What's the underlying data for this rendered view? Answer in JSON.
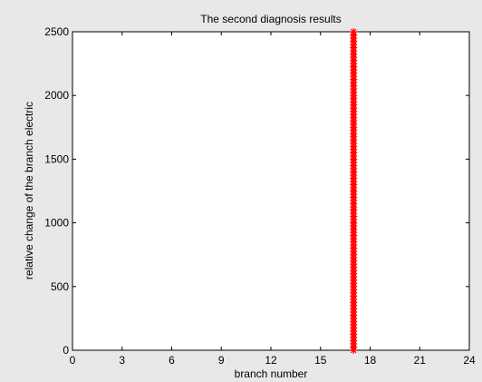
{
  "figure": {
    "background_color": "#e8e8e8",
    "axes_background_color": "#ffffff",
    "marker_color": "#ff0000"
  },
  "chart_data": {
    "type": "scatter",
    "title": "The second diagnosis results",
    "xlabel": "branch number",
    "ylabel": "relative change of the branch electric",
    "xlim": [
      0,
      24
    ],
    "ylim": [
      0,
      2500
    ],
    "xticks": [
      0,
      3,
      6,
      9,
      12,
      15,
      18,
      21,
      24
    ],
    "yticks": [
      0,
      500,
      1000,
      1500,
      2000,
      2500
    ],
    "grid": false,
    "marker": "asterisk",
    "series": [
      {
        "x": [
          17,
          17,
          17,
          17,
          17,
          17,
          17,
          17,
          17,
          17,
          17,
          17,
          17,
          17,
          17,
          17,
          17,
          17,
          17,
          17,
          17,
          17,
          17,
          17,
          17,
          17,
          17,
          17,
          17,
          17,
          17,
          17,
          17,
          17,
          17,
          17,
          17,
          17,
          17,
          17,
          17,
          17,
          17,
          17,
          17,
          17,
          17,
          17,
          17,
          17,
          17,
          17,
          17,
          17,
          17,
          17,
          17,
          17,
          17,
          17,
          17,
          17,
          17,
          17,
          17,
          17,
          17,
          17,
          17,
          17,
          17,
          17,
          17,
          17,
          17,
          17,
          17,
          17,
          17,
          17,
          17,
          17,
          17,
          17,
          17,
          17,
          17,
          17,
          17,
          17,
          17,
          17,
          17,
          17,
          17,
          17,
          17,
          17,
          17,
          17,
          17
        ],
        "y": [
          0,
          25,
          50,
          75,
          100,
          125,
          150,
          175,
          200,
          225,
          250,
          275,
          300,
          325,
          350,
          375,
          400,
          425,
          450,
          475,
          500,
          525,
          550,
          575,
          600,
          625,
          650,
          675,
          700,
          725,
          750,
          775,
          800,
          825,
          850,
          875,
          900,
          925,
          950,
          975,
          1000,
          1025,
          1050,
          1075,
          1100,
          1125,
          1150,
          1175,
          1200,
          1225,
          1250,
          1275,
          1300,
          1325,
          1350,
          1375,
          1400,
          1425,
          1450,
          1475,
          1500,
          1525,
          1550,
          1575,
          1600,
          1625,
          1650,
          1675,
          1700,
          1725,
          1750,
          1775,
          1800,
          1825,
          1850,
          1875,
          1900,
          1925,
          1950,
          1975,
          2000,
          2025,
          2050,
          2075,
          2100,
          2125,
          2150,
          2175,
          2200,
          2225,
          2250,
          2275,
          2300,
          2325,
          2350,
          2375,
          2400,
          2425,
          2450,
          2475,
          2500
        ]
      }
    ]
  }
}
